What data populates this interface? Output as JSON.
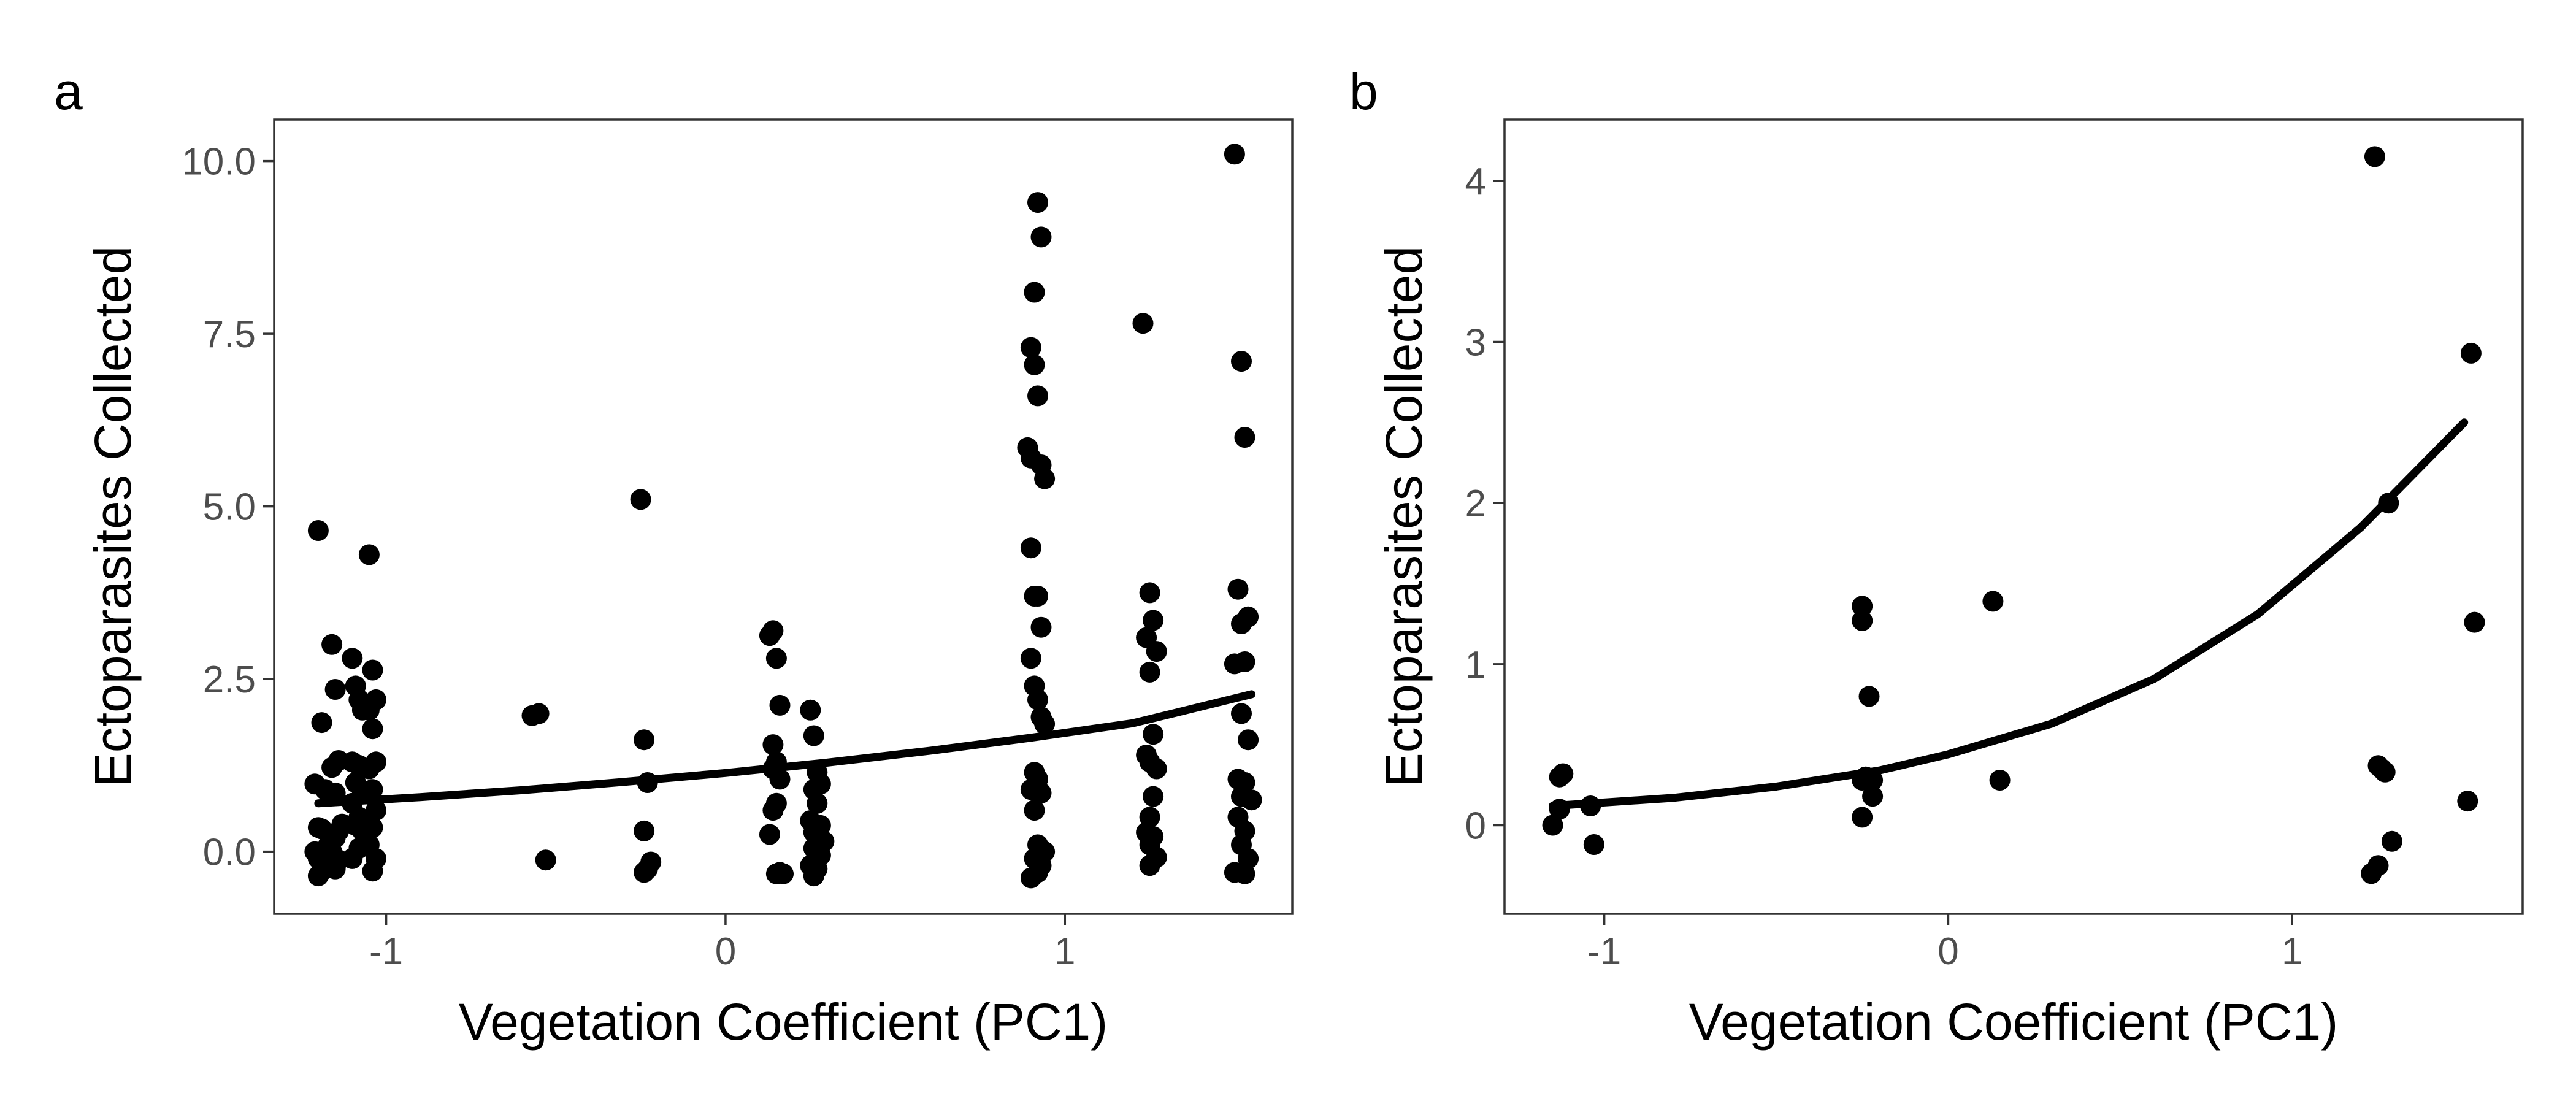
{
  "chart_data": [
    {
      "type": "scatter",
      "panel_label": "a",
      "xlabel": "Vegetation Coefficient (PC1)",
      "ylabel": "Ectoparasites Collected",
      "xlim": [
        -1.33,
        1.67
      ],
      "ylim": [
        -0.9,
        10.6
      ],
      "xticks": [
        -1,
        0,
        1
      ],
      "xtick_labels": [
        "-1",
        "0",
        "1"
      ],
      "yticks": [
        0,
        2.5,
        5,
        7.5,
        10
      ],
      "ytick_labels": [
        "0.0",
        "2.5",
        "5.0",
        "7.5",
        "10.0"
      ],
      "grid": false,
      "legend": "none",
      "points": {
        "x": [
          -1.2,
          -1.19,
          -1.21,
          -1.18,
          -1.2,
          -1.19,
          -1.17,
          -1.21,
          -1.2,
          -1.18,
          -1.19,
          -1.2,
          -1.16,
          -1.15,
          -1.14,
          -1.16,
          -1.15,
          -1.13,
          -1.14,
          -1.15,
          -1.16,
          -1.14,
          -1.15,
          -1.1,
          -1.09,
          -1.08,
          -1.07,
          -1.1,
          -1.08,
          -1.09,
          -1.07,
          -1.1,
          -1.08,
          -1.09,
          -1.07,
          -1.08,
          -1.1,
          -1.05,
          -1.04,
          -1.03,
          -1.05,
          -1.04,
          -1.03,
          -1.05,
          -1.04,
          -1.03,
          -1.04,
          -1.05,
          -1.03,
          -1.04,
          -0.57,
          -0.55,
          -0.53,
          -0.25,
          -0.24,
          -0.23,
          -0.24,
          -0.22,
          -0.23,
          -0.24,
          0.13,
          0.14,
          0.15,
          0.16,
          0.14,
          0.15,
          0.14,
          0.16,
          0.15,
          0.14,
          0.13,
          0.15,
          0.16,
          0.17,
          0.25,
          0.26,
          0.27,
          0.28,
          0.26,
          0.27,
          0.25,
          0.28,
          0.26,
          0.27,
          0.29,
          0.26,
          0.28,
          0.25,
          0.27,
          0.26,
          0.89,
          0.9,
          0.91,
          0.92,
          0.93,
          0.9,
          0.91,
          0.92,
          0.93,
          0.94,
          0.9,
          0.91,
          0.92,
          0.93,
          0.9,
          0.91,
          0.92,
          0.93,
          0.94,
          0.91,
          0.92,
          0.9,
          0.93,
          0.91,
          0.92,
          0.94,
          0.91,
          0.93,
          0.92,
          0.9,
          1.23,
          1.25,
          1.26,
          1.24,
          1.27,
          1.25,
          1.26,
          1.24,
          1.25,
          1.27,
          1.26,
          1.25,
          1.24,
          1.26,
          1.25,
          1.27,
          1.25,
          1.5,
          1.52,
          1.53,
          1.51,
          1.54,
          1.52,
          1.53,
          1.5,
          1.52,
          1.54,
          1.51,
          1.53,
          1.52,
          1.55,
          1.51,
          1.53,
          1.52,
          1.54,
          1.5,
          1.53
        ],
        "y": [
          4.65,
          1.87,
          0.98,
          0.9,
          0.35,
          0.33,
          0.1,
          0.0,
          -0.1,
          -0.18,
          -0.28,
          -0.35,
          3.0,
          2.35,
          1.32,
          1.22,
          0.85,
          0.4,
          0.3,
          0.2,
          0.0,
          -0.12,
          -0.25,
          2.8,
          2.4,
          2.2,
          2.05,
          1.3,
          1.25,
          1.0,
          0.85,
          0.7,
          0.5,
          0.38,
          0.3,
          0.05,
          -0.1,
          4.3,
          2.63,
          2.2,
          2.05,
          1.78,
          1.3,
          1.2,
          0.9,
          0.6,
          0.35,
          0.1,
          -0.1,
          -0.28,
          1.97,
          2.0,
          -0.12,
          5.1,
          1.62,
          1.0,
          0.3,
          -0.15,
          -0.25,
          -0.3,
          3.13,
          3.2,
          2.8,
          2.12,
          1.55,
          1.3,
          1.2,
          1.05,
          0.7,
          0.6,
          0.25,
          -0.32,
          -0.3,
          -0.32,
          2.05,
          1.68,
          1.15,
          0.98,
          0.9,
          0.7,
          0.45,
          0.38,
          0.28,
          0.15,
          0.15,
          0.05,
          -0.05,
          -0.2,
          -0.25,
          -0.35,
          5.85,
          5.7,
          8.1,
          9.4,
          8.9,
          7.3,
          7.05,
          6.6,
          5.6,
          5.4,
          4.4,
          3.7,
          3.7,
          3.25,
          2.8,
          2.4,
          2.2,
          1.95,
          1.85,
          1.15,
          1.05,
          0.9,
          0.85,
          0.6,
          0.1,
          0.0,
          -0.1,
          -0.2,
          -0.3,
          -0.38,
          7.65,
          3.75,
          3.35,
          3.1,
          2.9,
          2.6,
          1.7,
          1.4,
          1.3,
          1.2,
          0.8,
          0.5,
          0.28,
          0.22,
          0.1,
          -0.08,
          -0.2,
          10.1,
          7.1,
          6.0,
          3.8,
          3.4,
          3.3,
          2.75,
          2.72,
          2.0,
          1.62,
          1.05,
          1.0,
          0.8,
          0.75,
          0.5,
          0.3,
          0.1,
          -0.1,
          -0.3,
          -0.32
        ]
      },
      "fit": {
        "x": [
          -1.2,
          -0.9,
          -0.6,
          -0.3,
          0.0,
          0.3,
          0.6,
          0.9,
          1.2,
          1.55
        ],
        "y": [
          0.7,
          0.79,
          0.89,
          1.01,
          1.14,
          1.29,
          1.46,
          1.65,
          1.86,
          2.28
        ]
      }
    },
    {
      "type": "scatter",
      "panel_label": "b",
      "xlabel": "Vegetation Coefficient (PC1)",
      "ylabel": "Ectoparasites Collected",
      "xlim": [
        -1.29,
        1.67
      ],
      "ylim": [
        -0.55,
        4.38
      ],
      "xticks": [
        -1,
        0,
        1
      ],
      "xtick_labels": [
        "-1",
        "0",
        "1"
      ],
      "yticks": [
        0,
        1,
        2,
        3,
        4
      ],
      "ytick_labels": [
        "0",
        "1",
        "2",
        "3",
        "4"
      ],
      "grid": false,
      "legend": "none",
      "points": {
        "x": [
          -1.15,
          -1.13,
          -1.12,
          -1.13,
          -1.04,
          -1.03,
          -0.25,
          -0.25,
          -0.25,
          -0.23,
          -0.25,
          -0.22,
          -0.24,
          -0.22,
          0.13,
          0.15,
          1.24,
          1.25,
          1.26,
          1.27,
          1.28,
          1.29,
          1.25,
          1.23,
          1.51,
          1.52,
          1.53
        ],
        "y": [
          0.0,
          0.1,
          0.32,
          0.3,
          0.12,
          -0.12,
          1.36,
          1.27,
          0.28,
          0.8,
          0.05,
          0.28,
          0.3,
          0.18,
          1.39,
          0.28,
          4.15,
          0.37,
          0.35,
          0.33,
          2.0,
          -0.1,
          -0.25,
          -0.3,
          0.15,
          2.93,
          1.26
        ]
      },
      "fit": {
        "x": [
          -1.15,
          -0.8,
          -0.5,
          -0.2,
          0.0,
          0.3,
          0.6,
          0.9,
          1.2,
          1.5
        ],
        "y": [
          0.12,
          0.17,
          0.24,
          0.34,
          0.44,
          0.63,
          0.91,
          1.31,
          1.85,
          2.5
        ]
      }
    }
  ]
}
